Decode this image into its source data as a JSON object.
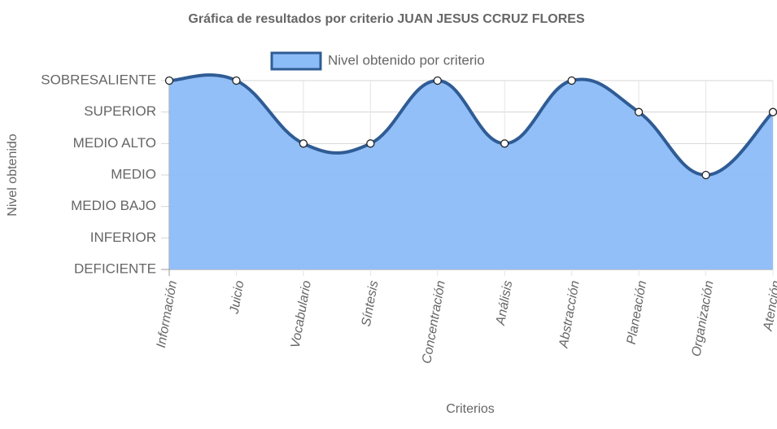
{
  "chart_data": {
    "type": "line",
    "title": "Gráfica de resultados por criterio JUAN JESUS CCRUZ FLORES",
    "x_label": "Criterios",
    "y_label": "Nivel obtenido",
    "categories": [
      "Información",
      "Juicio",
      "Vocabulario",
      "Síntesis",
      "Concentración",
      "Análisis",
      "Abstracción",
      "Planeación",
      "Organización",
      "Atención"
    ],
    "series": [
      {
        "name": "Nivel obtenido por criterio",
        "color": "#2f5c95",
        "fill": "#8cbcf7",
        "values": [
          6,
          6,
          4,
          4,
          6,
          4,
          6,
          5,
          3,
          5
        ]
      }
    ],
    "ylim": [
      0,
      6
    ],
    "yticks": [
      {
        "value": 0,
        "label": "DEFICIENTE"
      },
      {
        "value": 1,
        "label": "INFERIOR"
      },
      {
        "value": 2,
        "label": "MEDIO BAJO"
      },
      {
        "value": 3,
        "label": "MEDIO"
      },
      {
        "value": 4,
        "label": "MEDIO ALTO"
      },
      {
        "value": 5,
        "label": "SUPERIOR"
      },
      {
        "value": 6,
        "label": "SOBRESALIENTE"
      }
    ],
    "grid": true,
    "legend": "top"
  }
}
